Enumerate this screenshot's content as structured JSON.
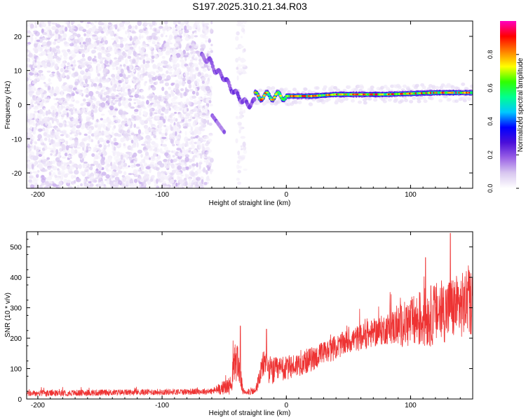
{
  "title": "S197.2025.310.21.34.R03",
  "chart_data": [
    {
      "type": "heatmap",
      "title": "",
      "xlabel": "Height of straight line (km)",
      "ylabel": "Frequency (Hz)",
      "xlim": [
        -209,
        150
      ],
      "ylim": [
        -24.5,
        24.5
      ],
      "xticks": [
        -200,
        -100,
        0,
        100
      ],
      "yticks": [
        -20,
        -10,
        0,
        10,
        20
      ],
      "colorbar": {
        "label": "Normalized spectral amplitude",
        "range": [
          0,
          1
        ],
        "ticks": [
          0.0,
          0.2,
          0.4,
          0.6,
          0.8
        ],
        "stops": [
          "#ffffff",
          "#d9c8f0",
          "#9b62e6",
          "#4b0fd9",
          "#0000ff",
          "#00c8ff",
          "#00ff90",
          "#30ff00",
          "#ffff00",
          "#ff8000",
          "#ff0000",
          "#ff00c0"
        ]
      },
      "regions": [
        {
          "name": "noise",
          "x_range": [
            -209,
            -60
          ],
          "freq_range": [
            -24.5,
            24.5
          ],
          "amplitude_range": [
            0.02,
            0.12
          ]
        },
        {
          "name": "noise-strip",
          "x_range": [
            -40,
            -33
          ],
          "freq_range": [
            -24.5,
            24.5
          ],
          "amplitude_range": [
            0.02,
            0.06
          ]
        },
        {
          "name": "signal-onset",
          "x_range": [
            -68,
            -25
          ],
          "freq_path": [
            [
              -68,
              14
            ],
            [
              -62,
              13
            ],
            [
              -57,
              10
            ],
            [
              -50,
              8
            ],
            [
              -45,
              5
            ],
            [
              -40,
              3
            ],
            [
              -35,
              1
            ],
            [
              -30,
              0
            ],
            [
              -25,
              1
            ]
          ],
          "amplitude": 0.15
        },
        {
          "name": "signal-ridge",
          "x_range": [
            -25,
            150
          ],
          "freq_path": [
            [
              -25,
              2.5
            ],
            [
              0,
              2.5
            ],
            [
              20,
              2.5
            ],
            [
              40,
              3
            ],
            [
              80,
              3
            ],
            [
              120,
              3.5
            ],
            [
              150,
              3.5
            ]
          ],
          "amplitude_range": [
            0.3,
            0.95
          ]
        }
      ]
    },
    {
      "type": "line",
      "title": "",
      "xlabel": "Height of straight line (km)",
      "ylabel": "SNR (10 * v/v)",
      "xlim": [
        -209,
        150
      ],
      "ylim": [
        0,
        550
      ],
      "xticks": [
        -200,
        -100,
        0,
        100
      ],
      "yticks": [
        0,
        100,
        200,
        300,
        400,
        500
      ],
      "color": "#ee3333",
      "series": [
        {
          "name": "SNR",
          "baseline": [
            [
              -209,
              18
            ],
            [
              -60,
              25
            ],
            [
              -45,
              45
            ],
            [
              -40,
              140
            ],
            [
              -37,
              80
            ],
            [
              -35,
              25
            ],
            [
              -25,
              25
            ],
            [
              -18,
              120
            ],
            [
              -12,
              90
            ],
            [
              0,
              100
            ],
            [
              20,
              130
            ],
            [
              50,
              190
            ],
            [
              80,
              230
            ],
            [
              100,
              250
            ],
            [
              120,
              280
            ],
            [
              150,
              320
            ]
          ],
          "spread": [
            [
              -209,
              10
            ],
            [
              -60,
              10
            ],
            [
              -45,
              30
            ],
            [
              -40,
              80
            ],
            [
              -37,
              40
            ],
            [
              -35,
              12
            ],
            [
              -25,
              12
            ],
            [
              -18,
              50
            ],
            [
              0,
              40
            ],
            [
              50,
              40
            ],
            [
              80,
              50
            ],
            [
              110,
              100
            ],
            [
              150,
              110
            ]
          ],
          "peaks": [
            [
              -37,
              240
            ],
            [
              -16,
              230
            ],
            [
              112,
              465
            ],
            [
              132,
              545
            ],
            [
              146,
              385
            ]
          ]
        }
      ]
    }
  ]
}
